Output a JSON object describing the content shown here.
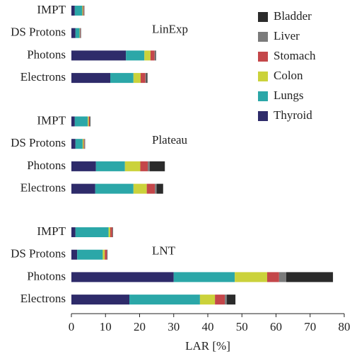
{
  "chart_data": {
    "type": "stacked-barh",
    "x_label": "LAR [%]",
    "annotations": [
      "LinExp",
      "Plateau",
      "LNT"
    ],
    "categories": [
      "IMPT",
      "DS Protons",
      "Photons",
      "Electrons",
      "IMPT",
      "DS Protons",
      "Photons",
      "Electrons",
      "IMPT",
      "DS Protons",
      "Photons",
      "Electrons"
    ],
    "series": [
      {
        "name": "Thyroid",
        "color": "#2e2b6a",
        "values": [
          1.0,
          1.2,
          16,
          11.4,
          1.0,
          1.2,
          7.2,
          7.0,
          1.2,
          1.7,
          30,
          17
        ]
      },
      {
        "name": "Lungs",
        "color": "#2ba7a8",
        "values": [
          2.2,
          1.2,
          5.4,
          6.8,
          3.8,
          2.1,
          8.5,
          11.2,
          9.7,
          7.5,
          17.9,
          20.7
        ]
      },
      {
        "name": "Colon",
        "color": "#cbd23b",
        "values": [
          0.2,
          0.1,
          1.8,
          2.1,
          0.3,
          0.3,
          4.5,
          3.9,
          0.5,
          0.6,
          9.5,
          4.4
        ]
      },
      {
        "name": "Stomach",
        "color": "#c4474a",
        "values": [
          0.2,
          0.1,
          1.2,
          1.4,
          0.3,
          0.2,
          2.2,
          2.4,
          0.6,
          0.6,
          3.5,
          2.9
        ]
      },
      {
        "name": "Liver",
        "color": "#7b7b7b",
        "values": [
          0.1,
          0.1,
          0.2,
          0.3,
          0.1,
          0.1,
          0.6,
          0.5,
          0.1,
          0.1,
          2.1,
          0.6
        ]
      },
      {
        "name": "Bladder",
        "color": "#2b2b2b",
        "values": [
          0.1,
          0.1,
          0.2,
          0.3,
          0.1,
          0.1,
          4.4,
          1.9,
          0.1,
          0.1,
          13.7,
          2.5
        ]
      }
    ],
    "xlim": [
      0,
      80
    ],
    "xticks": [
      0,
      10,
      20,
      30,
      40,
      50,
      60,
      70,
      80
    ],
    "legend": "upper right"
  }
}
